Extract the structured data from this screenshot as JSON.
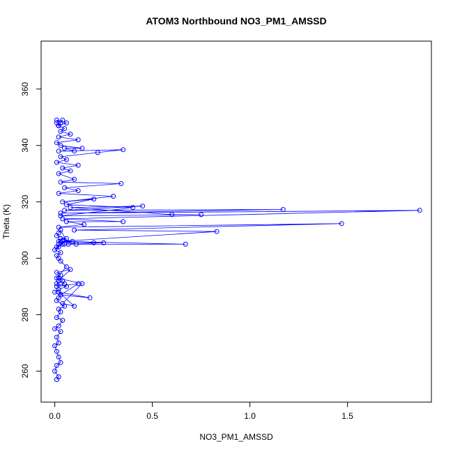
{
  "chart_data": {
    "type": "scatter",
    "title": "ATOM3 Northbound NO3_PM1_AMSSD",
    "xlabel": "NO3_PM1_AMSSD",
    "ylabel": "Theta (K)",
    "xlim": [
      -0.07,
      1.93
    ],
    "ylim": [
      249,
      377
    ],
    "x_ticks": [
      0.0,
      0.5,
      1.0,
      1.5
    ],
    "x_tick_labels": [
      "0.0",
      "0.5",
      "1.0",
      "1.5"
    ],
    "y_ticks": [
      260,
      280,
      300,
      320,
      340,
      360
    ],
    "y_tick_labels": [
      "260",
      "280",
      "300",
      "320",
      "340",
      "360"
    ],
    "grid": false,
    "legend": "none",
    "series": [
      {
        "color": "#0000ff",
        "marker": "open-circle",
        "connected": true,
        "x": [
          0.01,
          0.02,
          0.0,
          0.01,
          0.03,
          0.02,
          0.01,
          0.0,
          0.02,
          0.01,
          0.03,
          0.0,
          0.02,
          0.04,
          0.01,
          0.03,
          0.02,
          0.05,
          0.01,
          0.02,
          0.03,
          0.0,
          0.02,
          0.06,
          0.01,
          0.04,
          0.02,
          0.03,
          0.01,
          0.08,
          0.02,
          0.05,
          0.01,
          0.12,
          0.03,
          0.18,
          0.02,
          0.1,
          0.04,
          0.14,
          0.01,
          0.06,
          0.03,
          0.02,
          0.01,
          0.03,
          0.0,
          0.02,
          0.01,
          0.04,
          0.02,
          0.09,
          0.03,
          0.06,
          0.01,
          0.02,
          0.03,
          0.07,
          0.02,
          0.11,
          0.04,
          0.2,
          0.25,
          0.05,
          0.67,
          0.03,
          0.83,
          0.1,
          1.47,
          0.02,
          0.15,
          0.06,
          0.35,
          0.04,
          1.87,
          0.03,
          1.17,
          0.05,
          0.45,
          0.08,
          0.6,
          0.75,
          0.03,
          0.4,
          0.06,
          0.2,
          0.04,
          0.3,
          0.02,
          0.12,
          0.05,
          0.34,
          0.03,
          0.1,
          0.02,
          0.08,
          0.04,
          0.12,
          0.01,
          0.06,
          0.03,
          0.22,
          0.35,
          0.02,
          0.1,
          0.05,
          0.14,
          0.03,
          0.01,
          0.12,
          0.02,
          0.08,
          0.03,
          0.05,
          0.02,
          0.01,
          0.04,
          0.03,
          0.02,
          0.06,
          0.01,
          0.03,
          0.02
        ],
        "y": [
          257,
          258,
          260,
          262,
          263,
          265,
          267,
          269,
          270,
          272,
          274,
          275,
          276,
          278,
          279,
          281,
          282,
          283,
          285,
          286,
          287,
          288,
          289,
          290,
          291,
          292,
          293,
          294,
          295,
          296,
          292,
          291,
          290,
          291,
          287,
          286,
          288,
          283,
          284,
          291,
          293,
          297,
          299,
          300,
          301,
          302,
          303,
          304,
          304,
          305,
          306,
          306,
          307,
          307,
          308,
          309,
          310,
          305,
          305,
          305,
          306,
          305.5,
          305.5,
          305,
          305,
          306,
          309.5,
          310,
          312.3,
          311,
          312,
          313,
          313,
          314,
          317,
          316,
          317.3,
          317,
          318.5,
          318,
          315.5,
          315.5,
          315,
          318,
          319,
          321,
          320,
          322,
          323,
          324,
          325,
          326.5,
          327,
          328,
          330,
          331,
          332,
          333,
          334,
          335,
          336,
          337.5,
          338.5,
          338,
          338,
          339,
          339,
          340,
          341,
          342,
          343,
          344,
          345,
          346,
          347,
          348,
          349,
          348,
          347,
          348,
          349,
          348,
          347
        ]
      }
    ]
  }
}
